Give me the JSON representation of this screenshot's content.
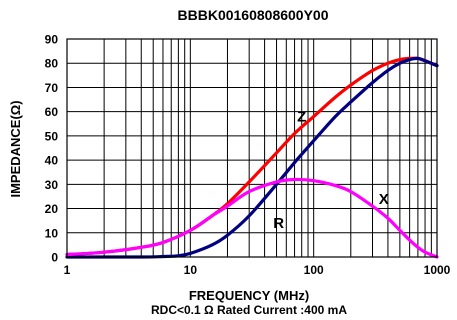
{
  "chart_data": {
    "type": "line",
    "title": "BBBK00160808600Y00",
    "xlabel": "FREQUENCY (MHz)",
    "ylabel": "IMPEDANCE(Ω)",
    "note": "RDC<0.1 Ω Rated Current :400 mA",
    "x_scale": "log",
    "xlim": [
      1,
      1000
    ],
    "ylim": [
      0,
      90
    ],
    "grid": true,
    "x_ticks": [
      "1",
      "10",
      "100",
      "1000"
    ],
    "y_ticks": [
      "0",
      "10",
      "20",
      "30",
      "40",
      "50",
      "60",
      "70",
      "80",
      "90"
    ],
    "series": [
      {
        "name": "Z",
        "color": "#ff0000",
        "x": [
          1,
          2,
          4,
          6,
          10,
          15,
          20,
          30,
          50,
          70,
          100,
          150,
          200,
          300,
          400,
          500,
          600,
          700,
          800,
          1000
        ],
        "y": [
          1,
          2,
          4,
          6,
          11,
          17,
          22,
          31,
          43,
          51,
          58,
          66,
          71,
          77,
          80,
          81.5,
          82,
          82,
          81,
          79
        ]
      },
      {
        "name": "R",
        "color": "#000080",
        "x": [
          1,
          4,
          6,
          8,
          10,
          15,
          20,
          30,
          50,
          70,
          100,
          150,
          200,
          300,
          400,
          500,
          600,
          700,
          800,
          1000
        ],
        "y": [
          0,
          0,
          0.2,
          0.5,
          1.5,
          5,
          9,
          17,
          30,
          39,
          48,
          58,
          64,
          72,
          77,
          80,
          81.5,
          82,
          81,
          79
        ]
      },
      {
        "name": "X",
        "color": "#ff00ff",
        "x": [
          1,
          2,
          4,
          6,
          10,
          15,
          20,
          30,
          50,
          70,
          100,
          150,
          200,
          300,
          400,
          500,
          600,
          700,
          800,
          1000
        ],
        "y": [
          1,
          2,
          4,
          6,
          11,
          17,
          21,
          27,
          31,
          32,
          31.5,
          29.5,
          27,
          21,
          16,
          11,
          7,
          4,
          2,
          0
        ]
      }
    ],
    "labels": [
      {
        "text": "Z",
        "x": 80,
        "y": 58
      },
      {
        "text": "R",
        "x": 52,
        "y": 14
      },
      {
        "text": "X",
        "x": 370,
        "y": 24
      }
    ]
  }
}
